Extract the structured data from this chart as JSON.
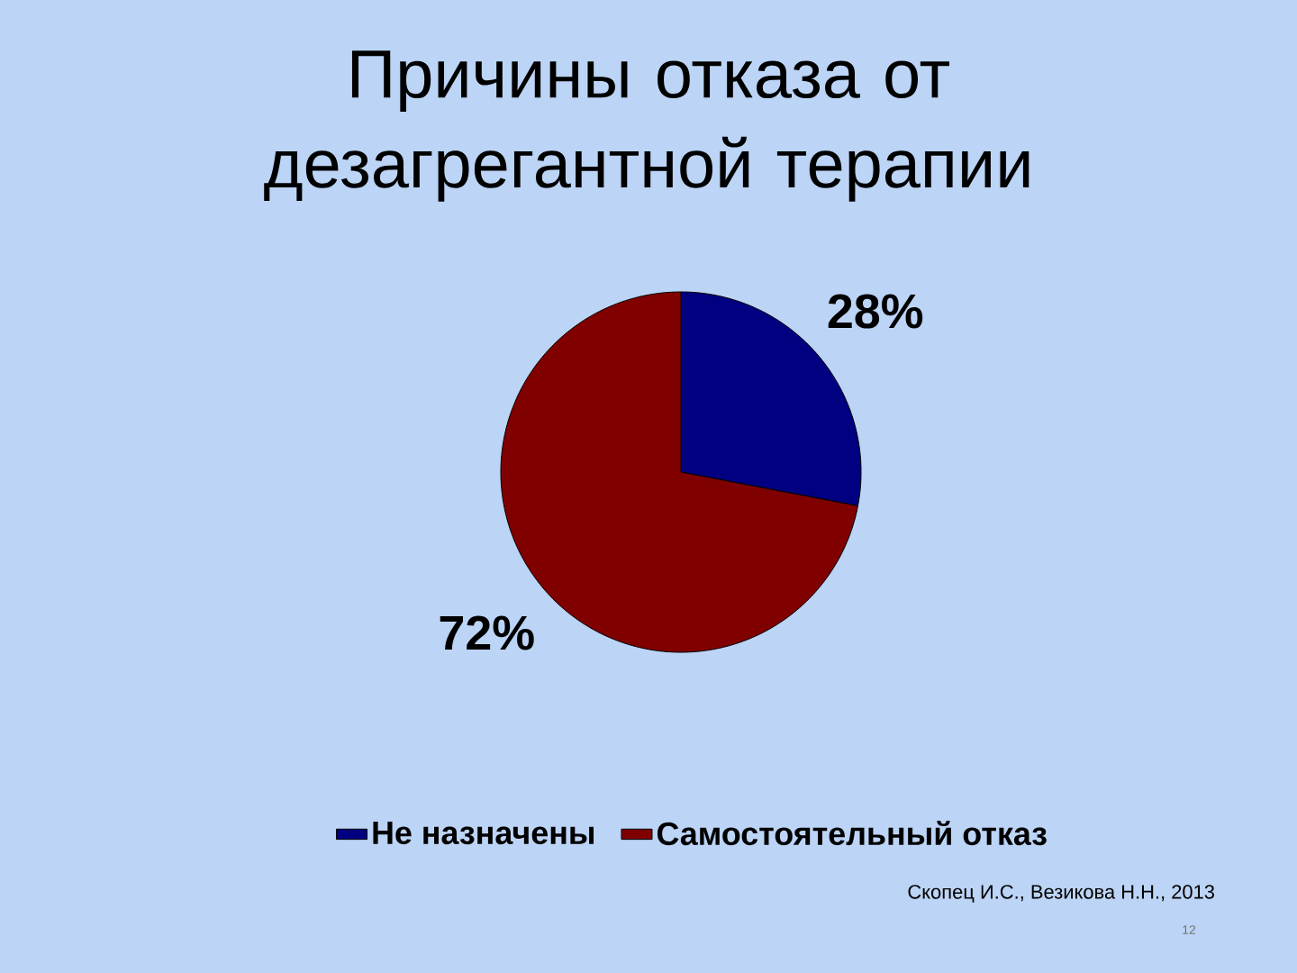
{
  "chart_data": {
    "type": "pie",
    "title": "Причины отказа от дезагрегантной терапии",
    "categories": [
      "Не назначены",
      "Самостоятельный отказ"
    ],
    "values": [
      28,
      72
    ],
    "colors": [
      "#000080",
      "#800000"
    ],
    "value_labels": [
      "28%",
      "72%"
    ],
    "legend": "bottom",
    "annotations": [
      "Скопец И.С., Везикова Н.Н., 2013",
      "12"
    ]
  }
}
